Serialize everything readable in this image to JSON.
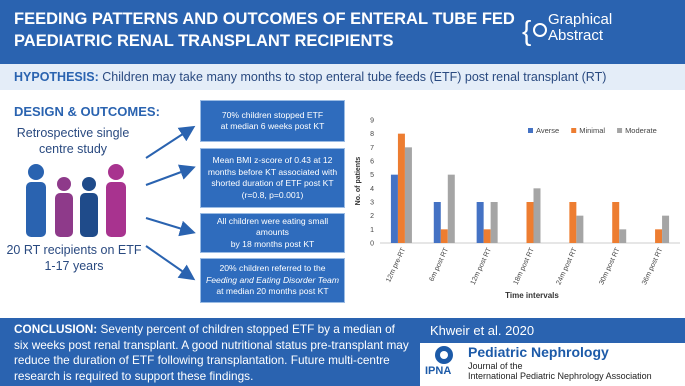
{
  "header": {
    "title_lines": [
      "FEEDING PATTERNS AND OUTCOMES OF ENTERAL TUBE FED",
      "PAEDIATRIC RENAL TRANSPLANT RECIPIENTS"
    ],
    "logo_lines": [
      "Graphical",
      "Abstract"
    ]
  },
  "hypothesis": {
    "label": "HYPOTHESIS:",
    "text": "Children may take many months to stop enteral tube feeds (ETF) post renal transplant (RT)"
  },
  "design": {
    "label": "DESIGN & OUTCOMES:",
    "study_lines": [
      "Retrospective single",
      "centre study"
    ],
    "cohort_lines": [
      "20 RT recipients on ETF",
      "1-17 years"
    ]
  },
  "boxes": [
    {
      "lines": [
        "70% children stopped ETF",
        "at median 6 weeks post KT"
      ]
    },
    {
      "lines": [
        "Mean BMI z-score of 0.43 at 12",
        "months before KT associated with",
        "shorted duration of ETF post KT",
        "(r=0.8, p=0.001)"
      ]
    },
    {
      "lines": [
        "All children were eating small",
        "amounts",
        "by 18 months post KT"
      ]
    },
    {
      "lines": [
        "20% children referred to the",
        "Feeding and Eating Disorder Team",
        "at median 20 months post KT"
      ]
    }
  ],
  "conclusion": {
    "label": "CONCLUSION:",
    "text": "Seventy percent of children stopped ETF by a median of six weeks post renal transplant.  A good nutritional status pre-transplant may reduce the duration of ETF following transplantation. Future multi-centre research is required to support these findings."
  },
  "citation": "Khweir et al. 2020",
  "journal": {
    "acronym": "IPNA",
    "name": "Pediatric Nephrology",
    "sub_lines": [
      "Journal of the",
      "International Pediatric Nephrology Association"
    ]
  },
  "chart_data": {
    "type": "bar",
    "x_label": "Time intervals",
    "y_label": "No. of patients",
    "categories": [
      "12m pre-RT",
      "6m post RT",
      "12m post RT",
      "18m post RT",
      "24m post RT",
      "30m post RT",
      "36m post RT"
    ],
    "series": [
      {
        "name": "Averse",
        "color": "#4472c4",
        "values": [
          5,
          3,
          3,
          0,
          0,
          0,
          0
        ]
      },
      {
        "name": "Minimal",
        "color": "#ed7d31",
        "values": [
          8,
          1,
          1,
          3,
          3,
          3,
          1
        ]
      },
      {
        "name": "Moderate",
        "color": "#a5a5a5",
        "values": [
          7,
          5,
          3,
          4,
          2,
          1,
          2
        ]
      }
    ],
    "ylim": [
      0,
      9
    ],
    "yticks": [
      0,
      1,
      2,
      3,
      4,
      5,
      6,
      7,
      8,
      9
    ],
    "grid": false,
    "legend": "top-right"
  }
}
